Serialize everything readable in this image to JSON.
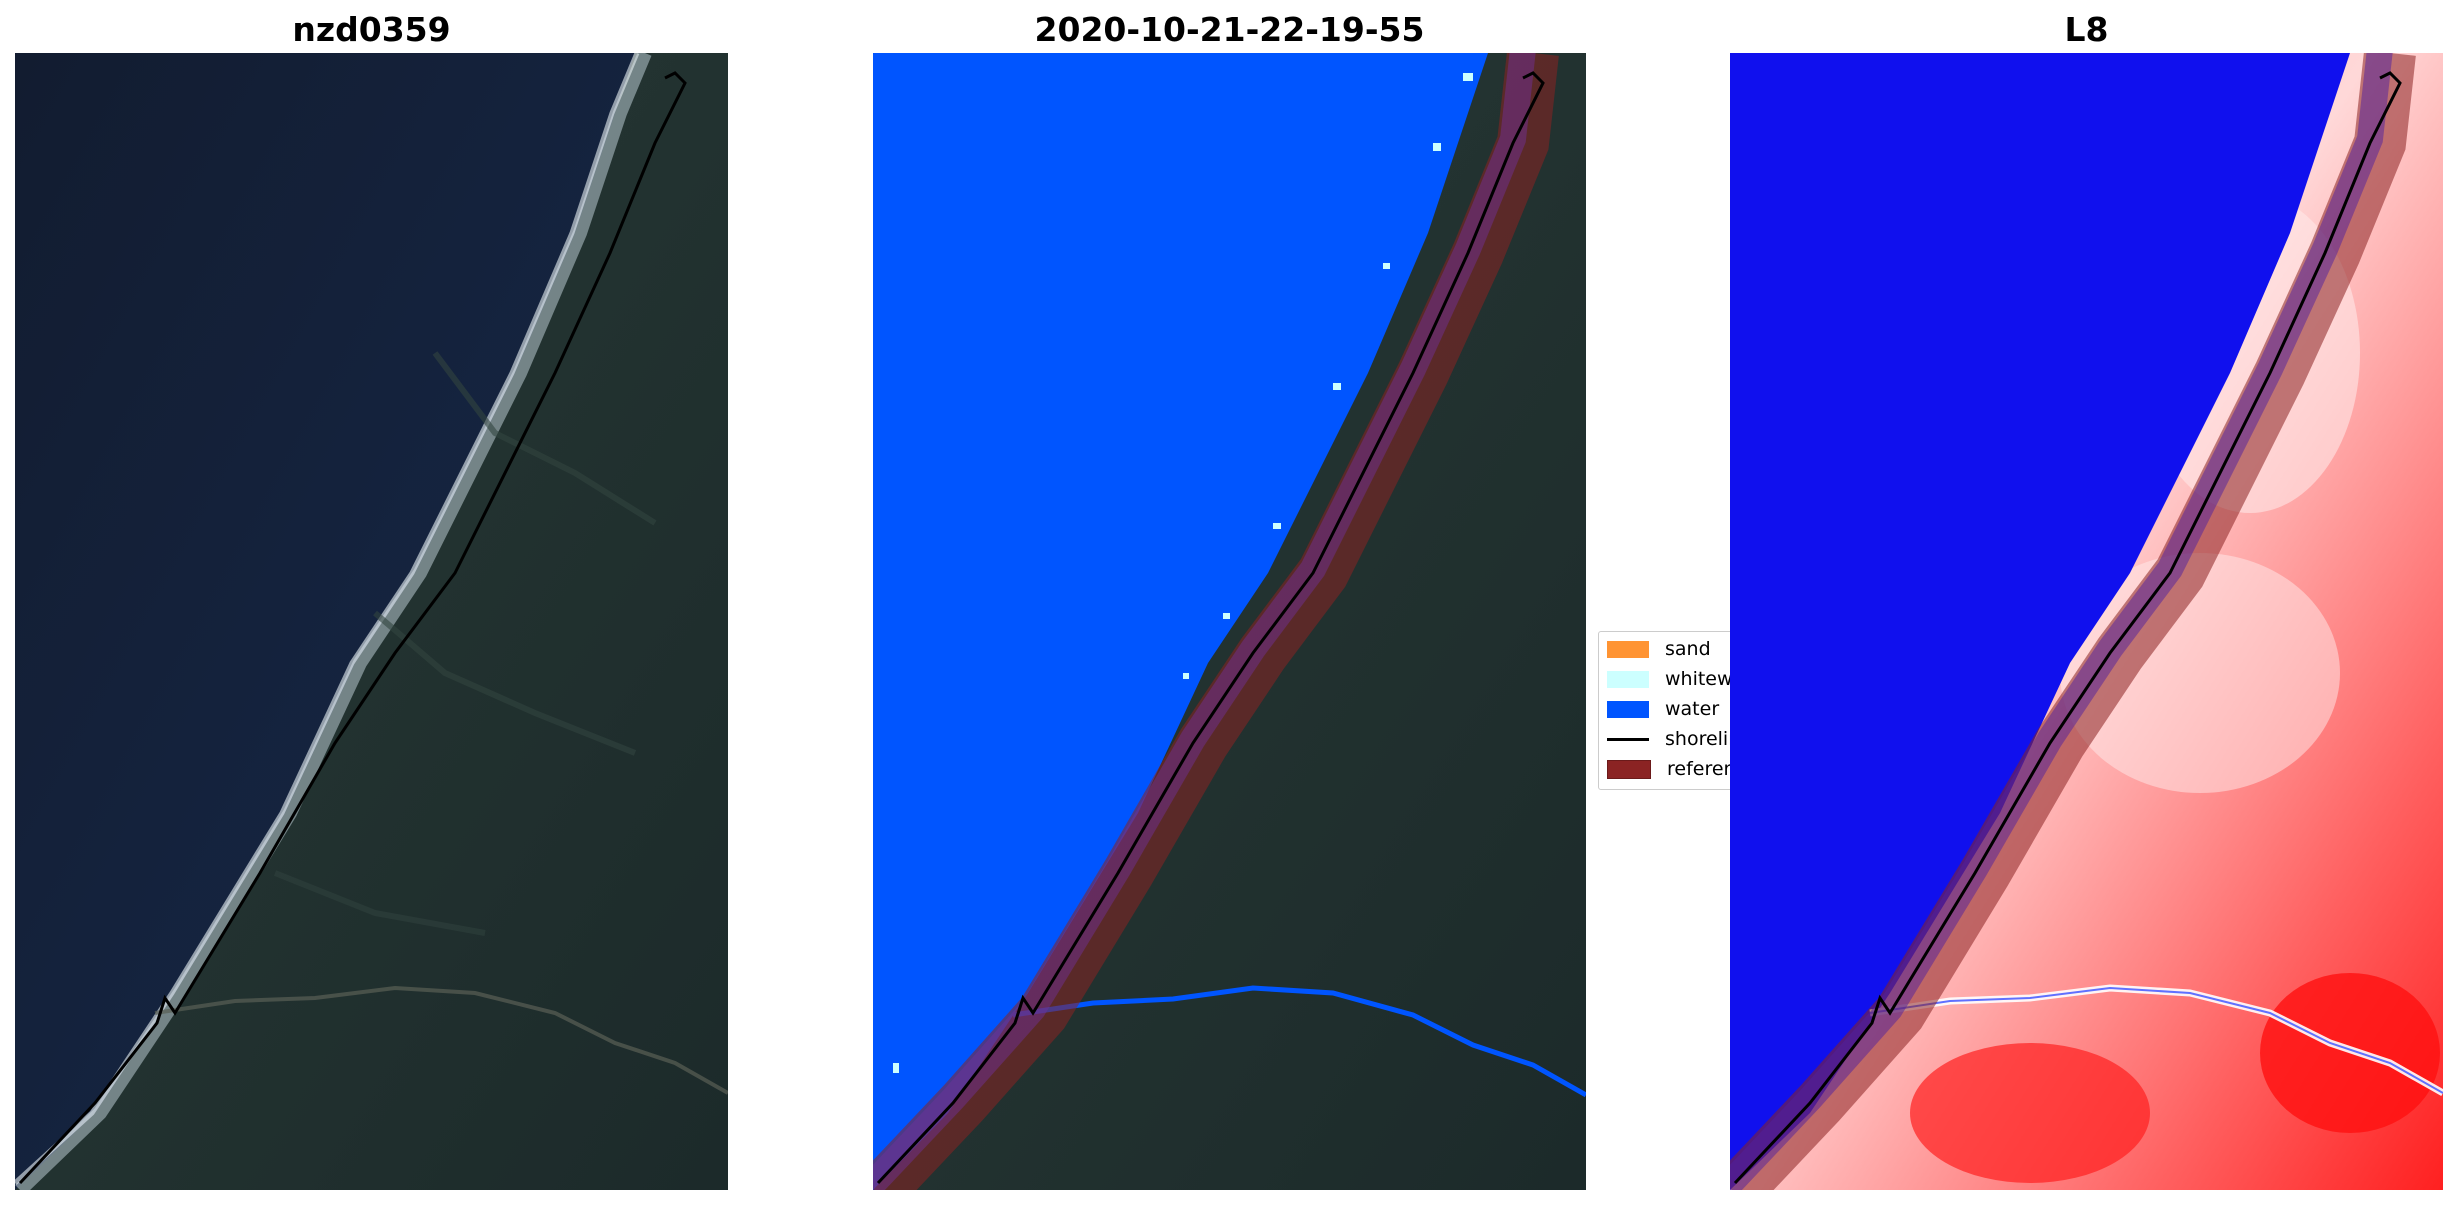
{
  "panels": [
    {
      "title": "nzd0359",
      "content": "RGB satellite image"
    },
    {
      "title": "2020-10-21-22-19-55",
      "content": "classified image"
    },
    {
      "title": "L8",
      "content": "MNDWI image"
    }
  ],
  "legend": {
    "items": [
      {
        "label": "sand",
        "color": "#ff9433"
      },
      {
        "label": "whitewater",
        "color": "#ccffff"
      },
      {
        "label": "water",
        "color": "#0055ff"
      },
      {
        "label": "shoreline",
        "color": "#000000"
      },
      {
        "label": "reference shoreline buffer",
        "color": "#8b2323"
      }
    ]
  }
}
